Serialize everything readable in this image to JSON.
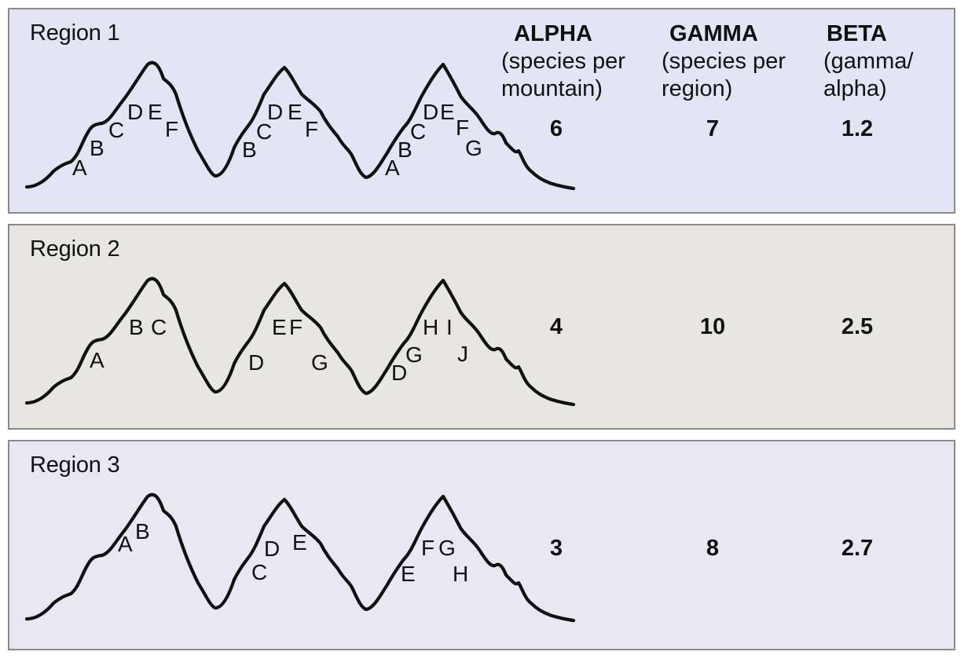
{
  "columns": {
    "alpha": {
      "name": "ALPHA",
      "sub": "(species per\nmountain)"
    },
    "gamma": {
      "name": "GAMMA",
      "sub": "(species per\nregion)"
    },
    "beta": {
      "name": "BETA",
      "sub": "(gamma/\nalpha)"
    }
  },
  "regions": [
    {
      "title": "Region 1",
      "bg": "#e3e5f4",
      "alpha": "6",
      "gamma": "7",
      "beta": "1.2",
      "mountains": [
        [
          "A",
          "B",
          "C",
          "D",
          "E",
          "F"
        ],
        [
          "B",
          "C",
          "D",
          "E",
          "F"
        ],
        [
          "A",
          "B",
          "C",
          "D",
          "E",
          "F",
          "G"
        ]
      ]
    },
    {
      "title": "Region 2",
      "bg": "#e7e6e1",
      "alpha": "4",
      "gamma": "10",
      "beta": "2.5",
      "mountains": [
        [
          "A",
          "B",
          "C"
        ],
        [
          "D",
          "E",
          "F",
          "G"
        ],
        [
          "D",
          "G",
          "H",
          "I",
          "J"
        ]
      ]
    },
    {
      "title": "Region 3",
      "bg": "#e8e7f2",
      "alpha": "3",
      "gamma": "8",
      "beta": "2.7",
      "mountains": [
        [
          "A",
          "B"
        ],
        [
          "C",
          "D",
          "E"
        ],
        [
          "E",
          "F",
          "G",
          "H"
        ]
      ]
    }
  ]
}
